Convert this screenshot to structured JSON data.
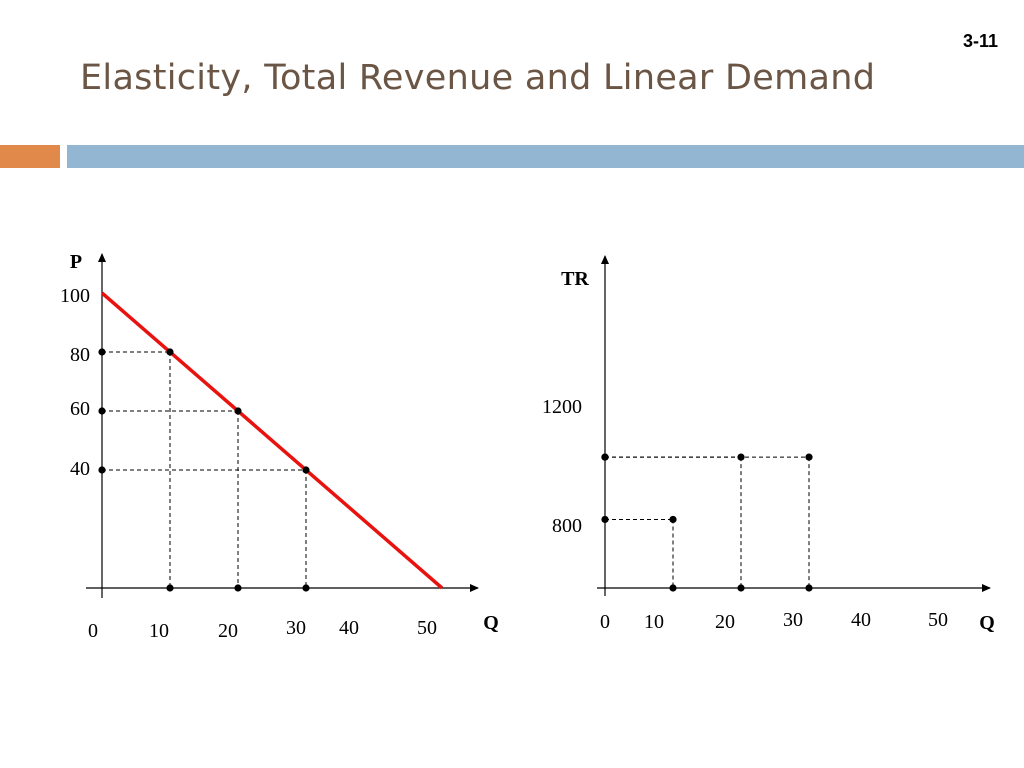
{
  "slide": {
    "number": "3-11",
    "title": "Elasticity, Total Revenue and Linear Demand"
  },
  "colors": {
    "title": "#6b5545",
    "accent_orange": "#e0894a",
    "accent_blue": "#93b6d3",
    "demand_line": "#e8130f"
  },
  "chart_data": [
    {
      "type": "line",
      "name": "demand",
      "xlabel": "Q",
      "ylabel": "P",
      "xlim": [
        0,
        50
      ],
      "ylim": [
        0,
        100
      ],
      "x_ticks": [
        "0",
        "10",
        "20",
        "30",
        "40",
        "50"
      ],
      "y_ticks": [
        "100",
        "80",
        "60",
        "40"
      ],
      "line": {
        "x": [
          0,
          50
        ],
        "y": [
          100,
          0
        ]
      },
      "points": [
        {
          "x": 10,
          "y": 80
        },
        {
          "x": 20,
          "y": 60
        },
        {
          "x": 30,
          "y": 40
        }
      ],
      "grid": false
    },
    {
      "type": "scatter",
      "name": "total_revenue",
      "xlabel": "Q",
      "ylabel": "TR",
      "xlim": [
        0,
        50
      ],
      "x_ticks": [
        "0",
        "10",
        "20",
        "30",
        "40",
        "50"
      ],
      "y_ticks": [
        "1200",
        "800"
      ],
      "points": [
        {
          "x": 10,
          "y": 800
        },
        {
          "x": 20,
          "y": 1200
        },
        {
          "x": 30,
          "y": 1200
        }
      ],
      "grid": false
    }
  ]
}
